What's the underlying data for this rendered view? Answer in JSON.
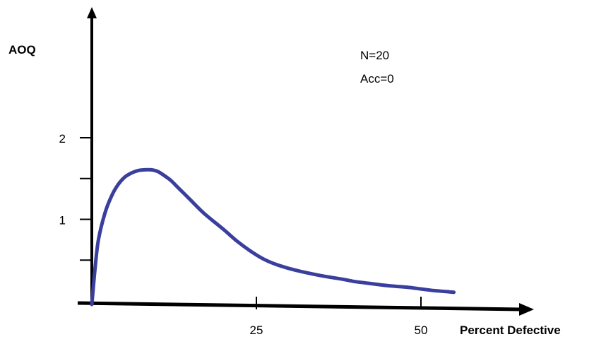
{
  "chart_data": {
    "type": "line",
    "title": "",
    "ylabel": "AOQ",
    "xlabel": "Percent Defective",
    "x_ticks": [
      25,
      50
    ],
    "y_ticks": [
      2,
      1
    ],
    "annotations": [
      "N=20",
      "Acc=0"
    ],
    "xlim": [
      0,
      62
    ],
    "ylim": [
      0,
      3.9
    ],
    "grid": false,
    "series": [
      {
        "color": "#3a3f9e",
        "x": [
          0,
          0.5,
          1,
          2,
          3,
          4,
          5,
          6,
          7,
          8,
          9,
          10,
          11,
          12,
          13,
          14,
          15,
          17,
          20,
          22,
          24,
          26,
          28,
          30,
          32,
          35,
          38,
          40,
          42,
          45,
          48,
          50,
          52,
          55
        ],
        "y": [
          0,
          0.45,
          0.79,
          1.12,
          1.33,
          1.47,
          1.56,
          1.61,
          1.64,
          1.65,
          1.65,
          1.63,
          1.58,
          1.52,
          1.44,
          1.36,
          1.28,
          1.12,
          0.92,
          0.78,
          0.66,
          0.56,
          0.49,
          0.44,
          0.4,
          0.35,
          0.31,
          0.28,
          0.26,
          0.23,
          0.21,
          0.19,
          0.17,
          0.15
        ]
      }
    ]
  }
}
